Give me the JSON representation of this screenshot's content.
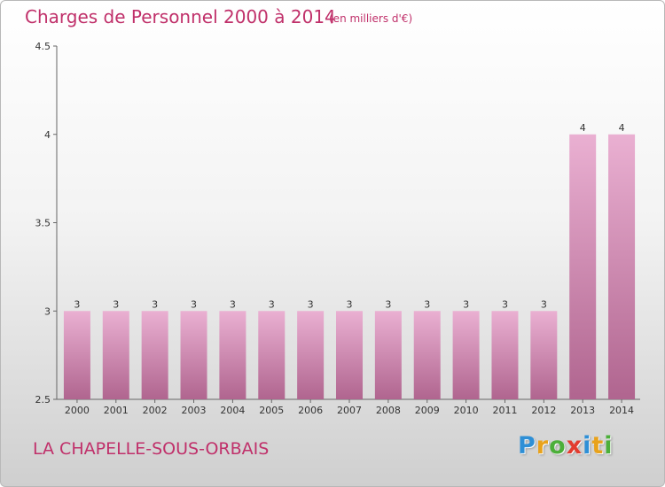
{
  "header": {
    "title": "Charges de Personnel 2000 à 2014",
    "unit": "(en milliers d'€)"
  },
  "footer": {
    "commune": "LA CHAPELLE-SOUS-ORBAIS",
    "logo": [
      "P",
      "r",
      "o",
      "x",
      "i",
      "t",
      "i"
    ],
    "logo_colors": [
      "#2e8fd6",
      "#e8a21c",
      "#4caf3a",
      "#e23c2f",
      "#2e8fd6",
      "#e8a21c",
      "#4caf3a"
    ]
  },
  "colors": {
    "bar_light": "#eab0d2",
    "bar_dark": "#b0658f",
    "title": "#c0306a"
  },
  "chart_data": {
    "type": "bar",
    "title": "Charges de Personnel 2000 à 2014",
    "subtitle": "(en milliers d'€)",
    "categories": [
      "2000",
      "2001",
      "2002",
      "2003",
      "2004",
      "2005",
      "2006",
      "2007",
      "2008",
      "2009",
      "2010",
      "2011",
      "2012",
      "2013",
      "2014"
    ],
    "values": [
      3,
      3,
      3,
      3,
      3,
      3,
      3,
      3,
      3,
      3,
      3,
      3,
      3,
      4,
      4
    ],
    "value_labels": [
      "3",
      "3",
      "3",
      "3",
      "3",
      "3",
      "3",
      "3",
      "3",
      "3",
      "3",
      "3",
      "3",
      "4",
      "4"
    ],
    "ylim": [
      2.5,
      4.5
    ],
    "yticks": [
      2.5,
      3,
      3.5,
      4,
      4.5
    ],
    "ytick_labels": [
      "2.5",
      "3",
      "3.5",
      "4",
      "4.5"
    ],
    "xlabel": "",
    "ylabel": "",
    "grid": false,
    "legend": "none"
  }
}
